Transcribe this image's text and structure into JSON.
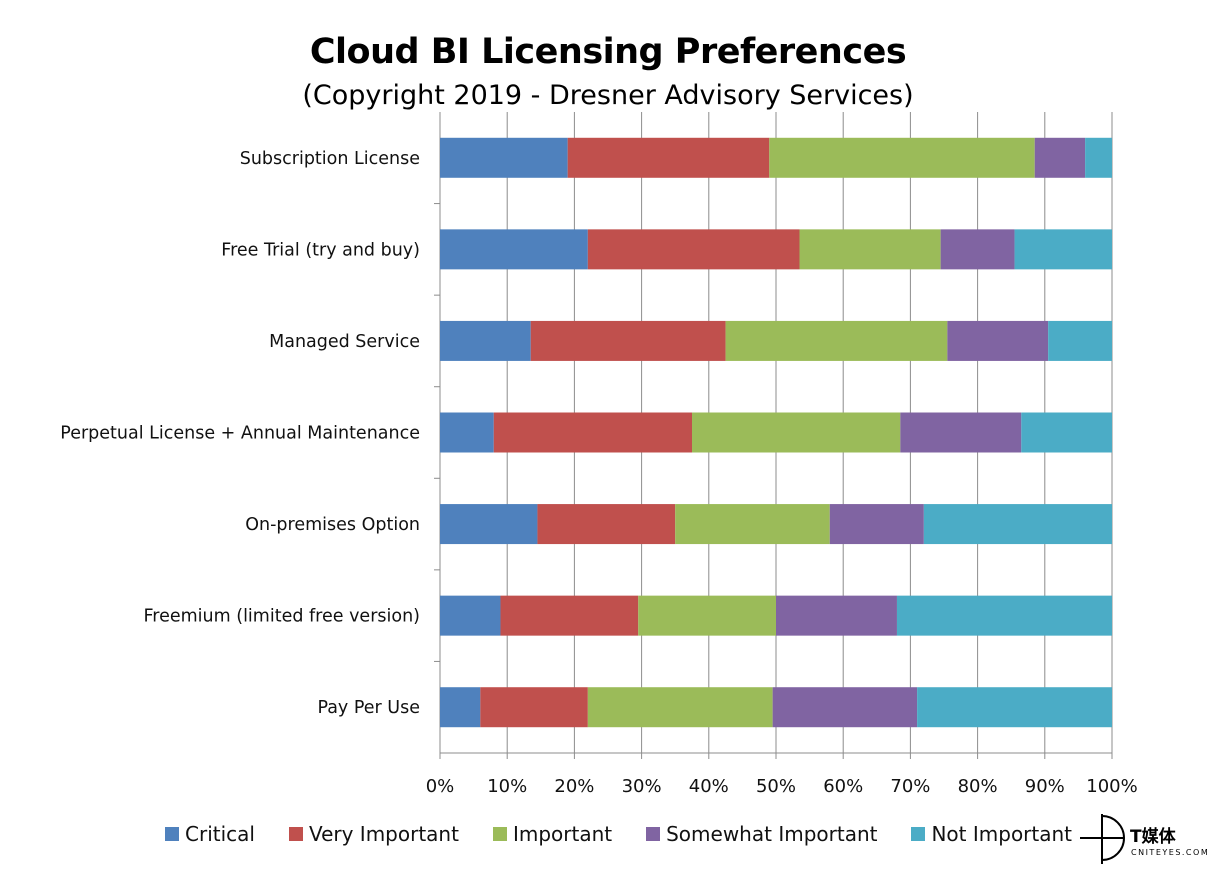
{
  "chart_data": {
    "type": "bar",
    "orientation": "horizontal",
    "stacked": true,
    "normalized_percent": true,
    "title": "Cloud BI Licensing Preferences",
    "subtitle": "(Copyright 2019 - Dresner Advisory Services)",
    "categories": [
      "Subscription License",
      "Free Trial (try and buy)",
      "Managed Service",
      "Perpetual License + Annual Maintenance",
      "On-premises Option",
      "Freemium (limited free version)",
      "Pay Per Use"
    ],
    "series": [
      {
        "name": "Critical",
        "color": "#4f81bd",
        "values": [
          19,
          22,
          13.5,
          8,
          14.5,
          9,
          6
        ]
      },
      {
        "name": "Very Important",
        "color": "#c0504d",
        "values": [
          30,
          31.5,
          29,
          29.5,
          20.5,
          20.5,
          16
        ]
      },
      {
        "name": "Important",
        "color": "#9bbb59",
        "values": [
          39.5,
          21,
          33,
          31,
          23,
          20.5,
          27.5
        ]
      },
      {
        "name": "Somewhat Important",
        "color": "#8064a2",
        "values": [
          7.5,
          11,
          15,
          18,
          14,
          18,
          21.5
        ]
      },
      {
        "name": "Not Important",
        "color": "#4bacc6",
        "values": [
          4,
          14.5,
          9.5,
          13.5,
          28,
          32,
          29
        ]
      }
    ],
    "x_ticks": [
      "0%",
      "10%",
      "20%",
      "30%",
      "40%",
      "50%",
      "60%",
      "70%",
      "80%",
      "90%",
      "100%"
    ],
    "xlim": [
      0,
      100
    ],
    "grid": true,
    "legend_position": "bottom"
  },
  "watermark": {
    "cn": "T媒体",
    "en": "CNITEYES.COM"
  }
}
